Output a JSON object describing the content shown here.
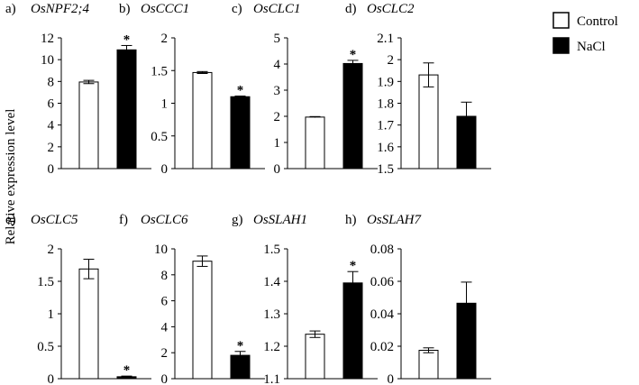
{
  "ylabel": "Relative expression level",
  "legend": [
    {
      "label": "Control",
      "fill": "#ffffff"
    },
    {
      "label": "NaCl",
      "fill": "#000000"
    }
  ],
  "colors": {
    "control": "#ffffff",
    "nacl": "#000000",
    "stroke": "#000000"
  },
  "chart_data": [
    {
      "type": "bar",
      "panel": "a)",
      "gene": "OsNPF2;4",
      "categories": [
        "Control",
        "NaCl"
      ],
      "values": [
        7.95,
        10.9
      ],
      "errors": [
        0.15,
        0.4
      ],
      "significant": [
        false,
        true
      ],
      "ylim": [
        0,
        12
      ],
      "ticks": [
        "0",
        "2",
        "4",
        "6",
        "8",
        "10",
        "12"
      ]
    },
    {
      "type": "bar",
      "panel": "b)",
      "gene": "OsCCC1",
      "categories": [
        "Control",
        "NaCl"
      ],
      "values": [
        1.47,
        1.1
      ],
      "errors": [
        0.015,
        0.01
      ],
      "significant": [
        false,
        true
      ],
      "ylim": [
        0,
        2
      ],
      "ticks": [
        "0",
        "0.5",
        "1",
        "1.5",
        "2"
      ]
    },
    {
      "type": "bar",
      "panel": "c)",
      "gene": "OsCLC1",
      "categories": [
        "Control",
        "NaCl"
      ],
      "values": [
        1.97,
        4.02
      ],
      "errors": [
        0.02,
        0.12
      ],
      "significant": [
        false,
        true
      ],
      "ylim": [
        0,
        5
      ],
      "ticks": [
        "0",
        "1",
        "2",
        "3",
        "4",
        "5"
      ]
    },
    {
      "type": "bar",
      "panel": "d)",
      "gene": "OsCLC2",
      "categories": [
        "Control",
        "NaCl"
      ],
      "values": [
        1.93,
        1.74
      ],
      "errors": [
        0.055,
        0.065
      ],
      "significant": [
        false,
        false
      ],
      "ylim": [
        1.5,
        2.1
      ],
      "ticks": [
        "1.5",
        "1.6",
        "1.7",
        "1.8",
        "1.9",
        "2",
        "2.1"
      ]
    },
    {
      "type": "bar",
      "panel": "e)",
      "gene": "OsCLC5",
      "categories": [
        "Control",
        "NaCl"
      ],
      "values": [
        1.69,
        0.03
      ],
      "errors": [
        0.15,
        0.01
      ],
      "significant": [
        false,
        true
      ],
      "ylim": [
        0,
        2
      ],
      "ticks": [
        "0",
        "0.5",
        "1",
        "1.5",
        "2"
      ]
    },
    {
      "type": "bar",
      "panel": "f)",
      "gene": "OsCLC6",
      "categories": [
        "Control",
        "NaCl"
      ],
      "values": [
        9.05,
        1.8
      ],
      "errors": [
        0.4,
        0.3
      ],
      "significant": [
        false,
        true
      ],
      "ylim": [
        0,
        10
      ],
      "ticks": [
        "0",
        "2",
        "4",
        "6",
        "8",
        "10"
      ]
    },
    {
      "type": "bar",
      "panel": "g)",
      "gene": "OsSLAH1",
      "categories": [
        "Control",
        "NaCl"
      ],
      "values": [
        1.237,
        1.395
      ],
      "errors": [
        0.01,
        0.035
      ],
      "significant": [
        false,
        true
      ],
      "ylim": [
        1.1,
        1.5
      ],
      "ticks": [
        "1.1",
        "1.2",
        "1.3",
        "1.4",
        "1.5"
      ]
    },
    {
      "type": "bar",
      "panel": "h)",
      "gene": "OsSLAH7",
      "categories": [
        "Control",
        "NaCl"
      ],
      "values": [
        0.0175,
        0.0465
      ],
      "errors": [
        0.0015,
        0.013
      ],
      "significant": [
        false,
        false
      ],
      "ylim": [
        0,
        0.08
      ],
      "ticks": [
        "0",
        "0.02",
        "0.04",
        "0.06",
        "0.08"
      ]
    }
  ],
  "significance_marker": "*"
}
